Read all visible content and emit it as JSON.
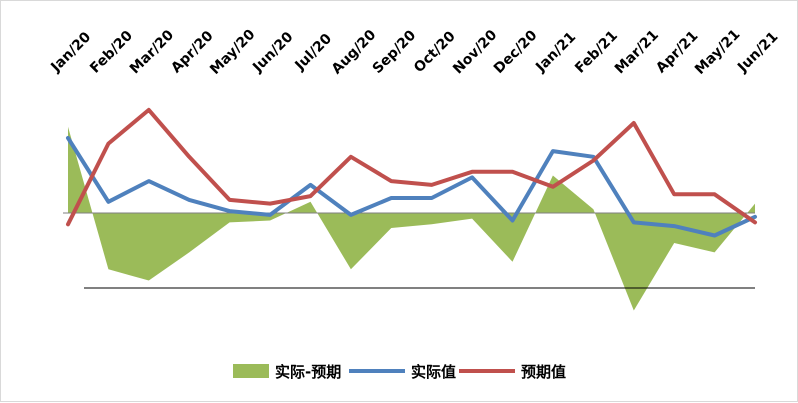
{
  "chart_data": {
    "type": "line",
    "categories": [
      "Jan/20",
      "Feb/20",
      "Mar/20",
      "Apr/20",
      "May/20",
      "Jun/20",
      "Jul/20",
      "Aug/20",
      "Sep/20",
      "Oct/20",
      "Nov/20",
      "Dec/20",
      "Jan/21",
      "Feb/21",
      "Mar/21",
      "Apr/21",
      "May/21",
      "Jun/21"
    ],
    "series": [
      {
        "name": "实际-预期",
        "kind": "area",
        "color": "#9bbb59",
        "values": [
          2.3,
          -1.5,
          -1.8,
          -1.05,
          -0.25,
          -0.2,
          0.3,
          -1.5,
          -0.4,
          -0.3,
          -0.15,
          -1.3,
          1.0,
          0.1,
          -2.6,
          -0.8,
          -1.05,
          0.25
        ]
      },
      {
        "name": "实际值",
        "kind": "line",
        "color": "#4f81bd",
        "values": [
          2.0,
          0.3,
          0.85,
          0.35,
          0.05,
          -0.05,
          0.75,
          -0.05,
          0.4,
          0.4,
          0.95,
          -0.2,
          1.65,
          1.5,
          -0.25,
          -0.35,
          -0.6,
          -0.1
        ]
      },
      {
        "name": "预期值",
        "kind": "line",
        "color": "#c0504d",
        "values": [
          -0.3,
          1.85,
          2.75,
          1.5,
          0.35,
          0.25,
          0.45,
          1.5,
          0.85,
          0.75,
          1.1,
          1.1,
          0.7,
          1.4,
          2.4,
          0.5,
          0.5,
          -0.25
        ]
      }
    ],
    "ylim": [
      -3.2,
      3.3
    ],
    "title": "",
    "xlabel": "",
    "ylabel": "",
    "legend_position": "bottom",
    "grid": false
  }
}
